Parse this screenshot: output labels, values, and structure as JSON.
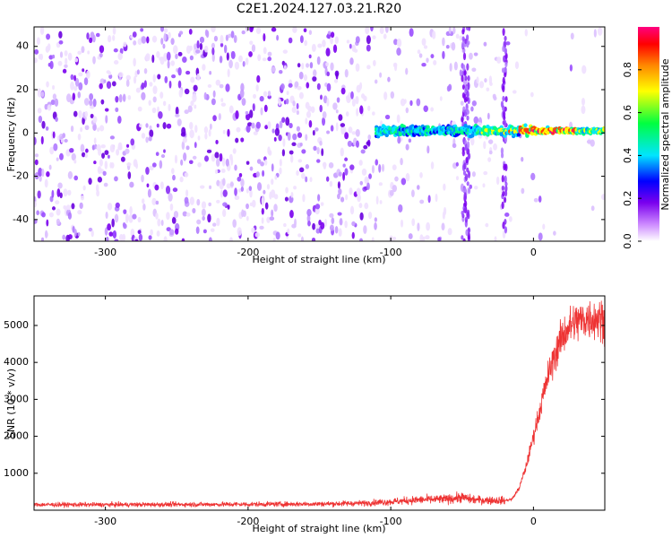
{
  "figure": {
    "title": "C2E1.2024.127.03.21.R20"
  },
  "chart_data": [
    {
      "type": "heatmap",
      "title": "C2E1.2024.127.03.21.R20",
      "xlabel": "Height of straight line (km)",
      "ylabel": "Frequency (Hz)",
      "xlim": [
        -350,
        50
      ],
      "ylim": [
        -50,
        49
      ],
      "xticks": [
        -300,
        -200,
        -100,
        0
      ],
      "yticks": [
        -40,
        -20,
        0,
        20,
        40
      ],
      "colorbar": {
        "label": "Normalized spectral amplitude",
        "range": [
          0,
          1
        ],
        "ticks": [
          "0.0",
          "0.2",
          "0.4",
          "0.6",
          "0.8"
        ],
        "colors": [
          "#ffffff",
          "#cc88ff",
          "#7a00ee",
          "#0000ff",
          "#00e5ff",
          "#00ff40",
          "#ffff00",
          "#ff8800",
          "#ff0000",
          "#ff0080"
        ]
      },
      "features": {
        "background_noise_region_x": [
          -350,
          -110
        ],
        "signal_band": {
          "x_start": -110,
          "x_end": 50,
          "frequency_center": 1,
          "frequency_halfwidth": 4
        },
        "strongest_signal_x": [
          -10,
          30
        ]
      }
    },
    {
      "type": "line",
      "xlabel": "Height of straight line (km)",
      "ylabel": "SNR (10 * v/v)",
      "xlim": [
        -350,
        50
      ],
      "ylim": [
        0,
        5800
      ],
      "xticks": [
        -300,
        -200,
        -100,
        0
      ],
      "yticks": [
        1000,
        2000,
        3000,
        4000,
        5000
      ],
      "color": "#ee3333",
      "envelope": {
        "x": [
          -350,
          -300,
          -200,
          -150,
          -120,
          -100,
          -80,
          -60,
          -50,
          -45,
          -40,
          -30,
          -20,
          -15,
          -10,
          -5,
          0,
          5,
          10,
          15,
          20,
          25,
          30,
          35,
          40,
          45,
          50
        ],
        "y": [
          150,
          150,
          160,
          170,
          190,
          230,
          280,
          300,
          350,
          300,
          280,
          270,
          260,
          300,
          600,
          1200,
          2000,
          2800,
          3600,
          4200,
          4700,
          4950,
          5100,
          5150,
          5200,
          5180,
          5200
        ]
      }
    }
  ]
}
